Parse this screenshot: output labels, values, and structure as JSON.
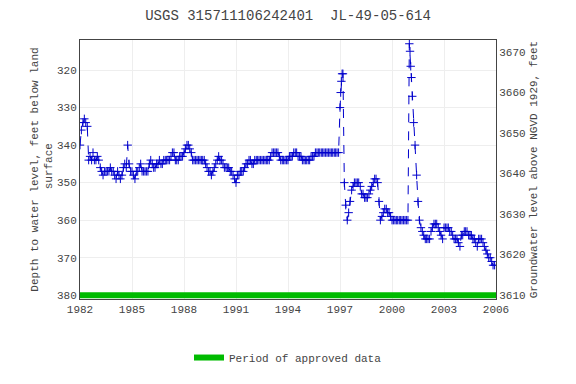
{
  "chart_data": {
    "type": "line",
    "title": "USGS 315711106242401  JL-49-05-614",
    "ylabel": "Depth to water level, feet below land\n surface",
    "y2label": "Groundwater level above NGVD 1929, feet",
    "xlim": [
      1982,
      2006
    ],
    "xticks": [
      1982,
      1985,
      1988,
      1991,
      1994,
      1997,
      2000,
      2003,
      2006
    ],
    "ylim": [
      381,
      312
    ],
    "yticks": [
      320,
      330,
      340,
      350,
      360,
      370,
      380
    ],
    "y2lim": [
      3609,
      3673
    ],
    "y2ticks": [
      3610,
      3620,
      3630,
      3640,
      3650,
      3660,
      3670
    ],
    "grid": true,
    "legend": "bottom",
    "color": "#0000cc",
    "marker": "plus",
    "line_style": "dashed",
    "approved_line": {
      "y": 380,
      "name": "Period of approved data",
      "color": "#00bb00"
    },
    "x": [
      1982.0,
      1982.08,
      1982.17,
      1982.25,
      1982.33,
      1982.42,
      1982.5,
      1982.58,
      1982.67,
      1982.75,
      1982.83,
      1982.92,
      1983.0,
      1983.08,
      1983.17,
      1983.25,
      1983.33,
      1983.42,
      1983.5,
      1983.58,
      1983.67,
      1983.75,
      1983.83,
      1983.92,
      1984.0,
      1984.08,
      1984.17,
      1984.25,
      1984.33,
      1984.42,
      1984.5,
      1984.58,
      1984.67,
      1984.75,
      1984.83,
      1984.92,
      1985.0,
      1985.08,
      1985.17,
      1985.25,
      1985.33,
      1985.42,
      1985.5,
      1985.58,
      1985.67,
      1985.75,
      1985.83,
      1985.92,
      1986.0,
      1986.08,
      1986.17,
      1986.25,
      1986.33,
      1986.42,
      1986.5,
      1986.58,
      1986.67,
      1986.75,
      1986.83,
      1986.92,
      1987.0,
      1987.08,
      1987.17,
      1987.25,
      1987.33,
      1987.42,
      1987.5,
      1987.58,
      1987.67,
      1987.75,
      1987.83,
      1987.92,
      1988.0,
      1988.08,
      1988.17,
      1988.25,
      1988.33,
      1988.42,
      1988.5,
      1988.58,
      1988.67,
      1988.75,
      1988.83,
      1988.92,
      1989.0,
      1989.08,
      1989.17,
      1989.25,
      1989.33,
      1989.42,
      1989.5,
      1989.58,
      1989.67,
      1989.75,
      1989.83,
      1989.92,
      1990.0,
      1990.08,
      1990.17,
      1990.25,
      1990.33,
      1990.42,
      1990.5,
      1990.58,
      1990.67,
      1990.75,
      1990.83,
      1990.92,
      1991.0,
      1991.08,
      1991.17,
      1991.25,
      1991.33,
      1991.42,
      1991.5,
      1991.58,
      1991.67,
      1991.75,
      1991.83,
      1991.92,
      1992.0,
      1992.08,
      1992.17,
      1992.25,
      1992.33,
      1992.42,
      1992.5,
      1992.58,
      1992.67,
      1992.75,
      1992.83,
      1992.92,
      1993.0,
      1993.08,
      1993.17,
      1993.25,
      1993.33,
      1993.42,
      1993.5,
      1993.58,
      1993.67,
      1993.75,
      1993.83,
      1993.92,
      1994.0,
      1994.08,
      1994.17,
      1994.25,
      1994.33,
      1994.42,
      1994.5,
      1994.58,
      1994.67,
      1994.75,
      1994.83,
      1994.92,
      1995.0,
      1995.08,
      1995.17,
      1995.25,
      1995.33,
      1995.42,
      1995.5,
      1995.58,
      1995.67,
      1995.75,
      1995.83,
      1995.92,
      1996.0,
      1996.08,
      1996.17,
      1996.25,
      1996.33,
      1996.42,
      1996.5,
      1996.58,
      1996.67,
      1996.75,
      1996.83,
      1996.92,
      1997.0,
      1997.04,
      1997.08,
      1997.12,
      1997.17,
      1997.25,
      1997.33,
      1997.42,
      1997.5,
      1997.58,
      1997.67,
      1997.75,
      1997.83,
      1997.92,
      1998.0,
      1998.08,
      1998.17,
      1998.25,
      1998.33,
      1998.42,
      1998.5,
      1998.58,
      1998.67,
      1998.75,
      1998.83,
      1998.92,
      1999.0,
      1999.08,
      1999.17,
      1999.25,
      1999.33,
      1999.42,
      1999.5,
      1999.58,
      1999.67,
      1999.75,
      1999.83,
      1999.92,
      2000.0,
      2000.08,
      2000.17,
      2000.25,
      2000.33,
      2000.42,
      2000.5,
      2000.58,
      2000.67,
      2000.75,
      2000.83,
      2000.92,
      2001.0,
      2001.04,
      2001.08,
      2001.12,
      2001.17,
      2001.25,
      2001.33,
      2001.42,
      2001.5,
      2001.58,
      2001.67,
      2001.75,
      2001.83,
      2001.92,
      2002.0,
      2002.08,
      2002.17,
      2002.25,
      2002.33,
      2002.42,
      2002.5,
      2002.58,
      2002.67,
      2002.75,
      2002.83,
      2002.92,
      2003.0,
      2003.08,
      2003.17,
      2003.25,
      2003.33,
      2003.42,
      2003.5,
      2003.58,
      2003.67,
      2003.75,
      2003.83,
      2003.92,
      2004.0,
      2004.08,
      2004.17,
      2004.25,
      2004.33,
      2004.42,
      2004.5,
      2004.58,
      2004.67,
      2004.75,
      2004.83,
      2004.92,
      2005.0,
      2005.08,
      2005.17,
      2005.25,
      2005.33,
      2005.42,
      2005.5,
      2005.58,
      2005.67,
      2005.75,
      2005.83,
      2005.92
    ],
    "values": [
      340,
      336,
      334,
      333,
      334,
      335,
      344,
      343,
      344,
      342,
      344,
      344,
      343,
      344,
      346,
      347,
      348,
      347,
      347,
      347,
      347,
      346,
      347,
      347,
      348,
      349,
      347,
      348,
      349,
      348,
      346,
      345,
      346,
      340,
      345,
      347,
      347,
      348,
      349,
      347,
      347,
      346,
      345,
      347,
      347,
      347,
      347,
      347,
      345,
      344,
      345,
      346,
      346,
      345,
      345,
      344,
      345,
      345,
      344,
      344,
      344,
      344,
      344,
      343,
      342,
      342,
      344,
      344,
      344,
      343,
      343,
      343,
      342,
      341,
      340,
      340,
      341,
      342,
      344,
      344,
      344,
      344,
      344,
      344,
      344,
      344,
      344,
      345,
      346,
      347,
      347,
      348,
      347,
      346,
      345,
      344,
      343,
      344,
      344,
      345,
      346,
      346,
      346,
      346,
      347,
      347,
      348,
      349,
      350,
      348,
      348,
      347,
      347,
      347,
      346,
      345,
      345,
      344,
      344,
      345,
      345,
      344,
      344,
      344,
      344,
      344,
      344,
      344,
      344,
      344,
      344,
      344,
      343,
      342,
      342,
      342,
      342,
      342,
      343,
      344,
      344,
      344,
      344,
      344,
      344,
      343,
      343,
      343,
      342,
      342,
      342,
      343,
      343,
      343,
      344,
      344,
      344,
      344,
      344,
      344,
      343,
      343,
      343,
      342,
      342,
      342,
      342,
      342,
      342,
      342,
      342,
      342,
      342,
      342,
      342,
      342,
      342,
      342,
      342,
      342,
      330,
      326,
      323,
      321,
      321,
      350,
      356,
      360,
      358,
      355,
      352,
      351,
      350,
      350,
      350,
      350,
      351,
      353,
      353,
      354,
      354,
      354,
      353,
      352,
      351,
      350,
      349,
      349,
      350,
      355,
      360,
      359,
      358,
      357,
      357,
      358,
      358,
      359,
      360,
      360,
      360,
      360,
      360,
      360,
      360,
      360,
      360,
      360,
      360,
      360,
      313,
      315,
      319,
      322,
      327,
      334,
      340,
      348,
      355,
      360,
      362,
      363,
      364,
      365,
      365,
      365,
      365,
      363,
      362,
      361,
      361,
      361,
      362,
      363,
      364,
      365,
      362,
      362,
      362,
      362,
      363,
      363,
      364,
      365,
      365,
      365,
      366,
      367,
      364,
      364,
      363,
      363,
      363,
      364,
      364,
      364,
      365,
      365,
      366,
      367,
      365,
      365,
      365,
      366,
      367,
      368,
      369,
      370,
      370,
      371,
      372,
      372
    ]
  }
}
